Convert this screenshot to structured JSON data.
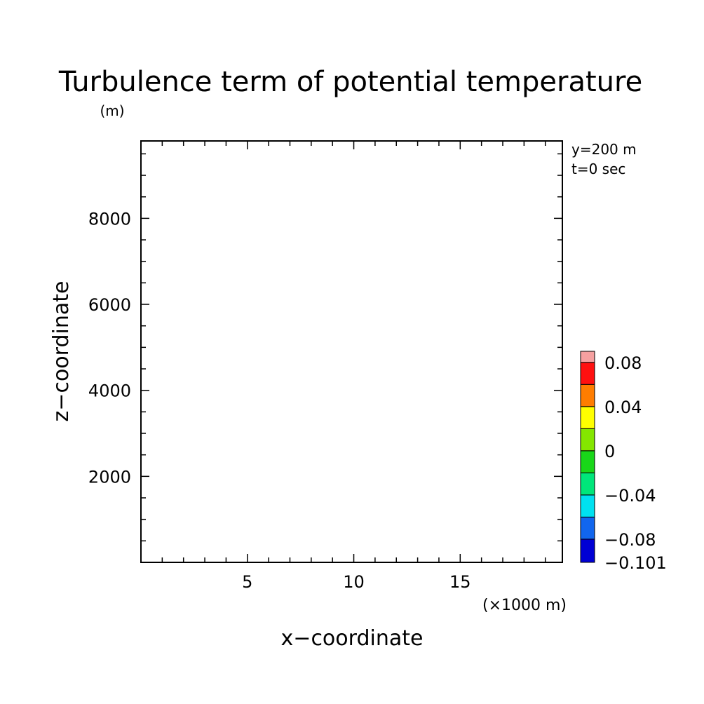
{
  "chart_data": {
    "type": "heatmap",
    "title": "Turbulence term of potential temperature",
    "y_unit": "(m)",
    "xlabel": "x−coordinate",
    "ylabel": "z−coordinate",
    "x_unit": "(×1000 m)",
    "annotations": [
      "y=200 m",
      "t=0 sec"
    ],
    "xlim": [
      0,
      19.8
    ],
    "ylim": [
      0,
      9800
    ],
    "x_ticks": [
      5,
      10,
      15
    ],
    "x_tick_labels": [
      "5",
      "10",
      "15"
    ],
    "x_minor_step": 1,
    "y_ticks": [
      2000,
      4000,
      6000,
      8000
    ],
    "y_tick_labels": [
      "2000",
      "4000",
      "6000",
      "8000"
    ],
    "y_minor_step": 500,
    "field_values": [],
    "colorbar": {
      "min": -0.101,
      "levels": [
        -0.08,
        -0.06,
        -0.04,
        -0.02,
        0,
        0.02,
        0.04,
        0.06,
        0.08,
        0.09
      ],
      "colors": [
        "#0000d4",
        "#1166ee",
        "#00e1f0",
        "#00e67a",
        "#19d719",
        "#84e600",
        "#ffff00",
        "#ff7d00",
        "#ff1010",
        "#f5a0a0"
      ],
      "labels": [
        {
          "value": 0.08,
          "text": "0.08"
        },
        {
          "value": 0.04,
          "text": "0.04"
        },
        {
          "value": 0,
          "text": "0"
        },
        {
          "value": -0.04,
          "text": "−0.04"
        },
        {
          "value": -0.08,
          "text": "−0.08"
        },
        {
          "value": -0.101,
          "text": "−0.101"
        }
      ]
    }
  }
}
